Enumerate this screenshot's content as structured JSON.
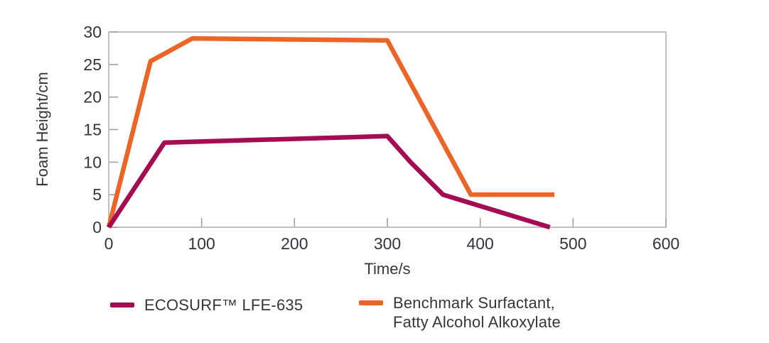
{
  "colors": {
    "ecosurf_line": "#A50D53",
    "benchmark_line": "#EC6526",
    "plot_border": "#ABABAB",
    "tick_mark": "#9B9B9B",
    "tick_text": "#31353C",
    "axis_title_text": "#33363C",
    "background": "#FFFFFF"
  },
  "chart_data": {
    "type": "line",
    "title": "",
    "xlabel": "Time/s",
    "ylabel": "Foam Height/cm",
    "xlim": [
      0,
      600
    ],
    "ylim": [
      0,
      30
    ],
    "xticks": [
      0,
      100,
      200,
      300,
      400,
      500,
      600
    ],
    "yticks": [
      0,
      5,
      10,
      15,
      20,
      25,
      30
    ],
    "grid": false,
    "legend_position": "bottom",
    "series": [
      {
        "id": "ecosurf",
        "name": "ECOSURF™ LFE-635",
        "color": "#A50D53",
        "points": [
          [
            0,
            0
          ],
          [
            60,
            13
          ],
          [
            300,
            14
          ],
          [
            325,
            10
          ],
          [
            360,
            5
          ],
          [
            475,
            0
          ]
        ]
      },
      {
        "id": "benchmark",
        "name": "Benchmark Surfactant, Fatty Alcohol Alkoxylate",
        "color": "#EC6526",
        "points": [
          [
            0,
            0
          ],
          [
            45,
            25.5
          ],
          [
            90,
            29
          ],
          [
            300,
            28.7
          ],
          [
            390,
            5
          ],
          [
            480,
            5
          ]
        ]
      }
    ]
  },
  "legend": {
    "items": [
      {
        "color": "#A50D53",
        "label_lines": [
          "ECOSURF™ LFE-635",
          ""
        ]
      },
      {
        "color": "#EC6526",
        "label_lines": [
          "Benchmark Surfactant,",
          "Fatty Alcohol Alkoxylate"
        ]
      }
    ]
  }
}
